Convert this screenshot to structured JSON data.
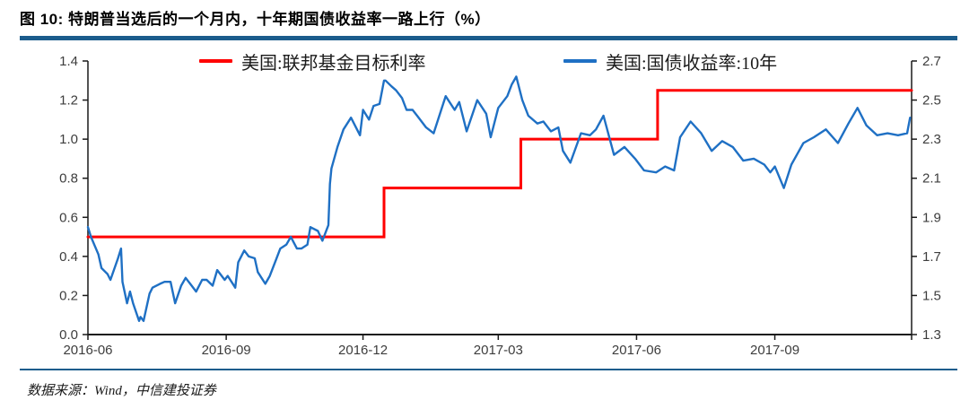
{
  "header": {
    "title": "图 10: 特朗普当选后的一个月内，十年期国债收益率一路上行（%）"
  },
  "footer": {
    "source": "数据来源：Wind，中信建投证券"
  },
  "colors": {
    "accent_bar": "#1b5c8c",
    "axis": "#1a1a1a",
    "tick_text": "#3d3d3d",
    "fedfunds_red": "#ff0000",
    "ust10y_blue": "#1f70c4"
  },
  "chart_data": {
    "type": "line",
    "title": "图 10: 特朗普当选后的一个月内，十年期国债收益率一路上行（%）",
    "grid": false,
    "legend_position": "top",
    "axes": {
      "left": {
        "min": 0.0,
        "max": 1.4,
        "ticks": [
          "0.0",
          "0.2",
          "0.4",
          "0.6",
          "0.8",
          "1.0",
          "1.2",
          "1.4"
        ]
      },
      "right": {
        "min": 1.3,
        "max": 2.7,
        "ticks": [
          "1.3",
          "1.5",
          "1.7",
          "1.9",
          "2.1",
          "2.3",
          "2.5",
          "2.7"
        ]
      },
      "x": {
        "start": "2016-06-01",
        "end": "2017-12-01",
        "ticks": [
          {
            "label": "2016-06",
            "date": "2016-06-01"
          },
          {
            "label": "2016-09",
            "date": "2016-09-01"
          },
          {
            "label": "2016-12",
            "date": "2016-12-01"
          },
          {
            "label": "2017-03",
            "date": "2017-03-01"
          },
          {
            "label": "2017-06",
            "date": "2017-06-01"
          },
          {
            "label": "2017-09",
            "date": "2017-09-01"
          },
          {
            "label": "",
            "date": "2017-12-01"
          }
        ]
      }
    },
    "series": [
      {
        "name": "美国:联邦基金目标利率",
        "axis": "left",
        "color": "#ff0000",
        "style": "step",
        "data": [
          [
            "2016-06-01",
            0.5
          ],
          [
            "2016-12-15",
            0.5
          ],
          [
            "2016-12-15",
            0.75
          ],
          [
            "2017-03-16",
            0.75
          ],
          [
            "2017-03-16",
            1.0
          ],
          [
            "2017-06-15",
            1.0
          ],
          [
            "2017-06-15",
            1.25
          ],
          [
            "2017-12-01",
            1.25
          ]
        ]
      },
      {
        "name": "美国:国债收益率:10年",
        "axis": "right",
        "color": "#1f70c4",
        "style": "line",
        "data": [
          [
            "2016-06-01",
            1.85
          ],
          [
            "2016-06-03",
            1.8
          ],
          [
            "2016-06-08",
            1.71
          ],
          [
            "2016-06-10",
            1.64
          ],
          [
            "2016-06-14",
            1.61
          ],
          [
            "2016-06-16",
            1.58
          ],
          [
            "2016-06-21",
            1.69
          ],
          [
            "2016-06-23",
            1.74
          ],
          [
            "2016-06-24",
            1.57
          ],
          [
            "2016-06-27",
            1.46
          ],
          [
            "2016-06-29",
            1.52
          ],
          [
            "2016-07-01",
            1.46
          ],
          [
            "2016-07-05",
            1.37
          ],
          [
            "2016-07-06",
            1.39
          ],
          [
            "2016-07-08",
            1.37
          ],
          [
            "2016-07-12",
            1.51
          ],
          [
            "2016-07-14",
            1.54
          ],
          [
            "2016-07-19",
            1.56
          ],
          [
            "2016-07-22",
            1.57
          ],
          [
            "2016-07-26",
            1.57
          ],
          [
            "2016-07-29",
            1.46
          ],
          [
            "2016-08-02",
            1.55
          ],
          [
            "2016-08-05",
            1.59
          ],
          [
            "2016-08-09",
            1.55
          ],
          [
            "2016-08-12",
            1.52
          ],
          [
            "2016-08-16",
            1.58
          ],
          [
            "2016-08-19",
            1.58
          ],
          [
            "2016-08-23",
            1.55
          ],
          [
            "2016-08-26",
            1.63
          ],
          [
            "2016-08-31",
            1.58
          ],
          [
            "2016-09-02",
            1.6
          ],
          [
            "2016-09-07",
            1.54
          ],
          [
            "2016-09-09",
            1.67
          ],
          [
            "2016-09-13",
            1.73
          ],
          [
            "2016-09-16",
            1.7
          ],
          [
            "2016-09-20",
            1.69
          ],
          [
            "2016-09-22",
            1.62
          ],
          [
            "2016-09-27",
            1.56
          ],
          [
            "2016-09-30",
            1.6
          ],
          [
            "2016-10-04",
            1.68
          ],
          [
            "2016-10-07",
            1.74
          ],
          [
            "2016-10-11",
            1.76
          ],
          [
            "2016-10-14",
            1.8
          ],
          [
            "2016-10-18",
            1.74
          ],
          [
            "2016-10-21",
            1.74
          ],
          [
            "2016-10-25",
            1.76
          ],
          [
            "2016-10-27",
            1.85
          ],
          [
            "2016-11-01",
            1.83
          ],
          [
            "2016-11-04",
            1.78
          ],
          [
            "2016-11-08",
            1.86
          ],
          [
            "2016-11-09",
            2.07
          ],
          [
            "2016-11-10",
            2.15
          ],
          [
            "2016-11-14",
            2.26
          ],
          [
            "2016-11-18",
            2.35
          ],
          [
            "2016-11-23",
            2.41
          ],
          [
            "2016-11-29",
            2.32
          ],
          [
            "2016-12-01",
            2.45
          ],
          [
            "2016-12-05",
            2.4
          ],
          [
            "2016-12-08",
            2.47
          ],
          [
            "2016-12-12",
            2.48
          ],
          [
            "2016-12-15",
            2.6
          ],
          [
            "2016-12-16",
            2.6
          ],
          [
            "2016-12-20",
            2.57
          ],
          [
            "2016-12-23",
            2.55
          ],
          [
            "2016-12-27",
            2.51
          ],
          [
            "2016-12-30",
            2.45
          ],
          [
            "2017-01-03",
            2.45
          ],
          [
            "2017-01-06",
            2.42
          ],
          [
            "2017-01-12",
            2.36
          ],
          [
            "2017-01-17",
            2.33
          ],
          [
            "2017-01-25",
            2.52
          ],
          [
            "2017-01-31",
            2.45
          ],
          [
            "2017-02-03",
            2.49
          ],
          [
            "2017-02-08",
            2.34
          ],
          [
            "2017-02-15",
            2.5
          ],
          [
            "2017-02-21",
            2.43
          ],
          [
            "2017-02-24",
            2.31
          ],
          [
            "2017-03-01",
            2.46
          ],
          [
            "2017-03-07",
            2.52
          ],
          [
            "2017-03-10",
            2.58
          ],
          [
            "2017-03-13",
            2.62
          ],
          [
            "2017-03-17",
            2.5
          ],
          [
            "2017-03-21",
            2.42
          ],
          [
            "2017-03-27",
            2.38
          ],
          [
            "2017-03-31",
            2.39
          ],
          [
            "2017-04-05",
            2.34
          ],
          [
            "2017-04-10",
            2.36
          ],
          [
            "2017-04-13",
            2.24
          ],
          [
            "2017-04-18",
            2.18
          ],
          [
            "2017-04-25",
            2.33
          ],
          [
            "2017-05-01",
            2.32
          ],
          [
            "2017-05-05",
            2.35
          ],
          [
            "2017-05-10",
            2.42
          ],
          [
            "2017-05-17",
            2.22
          ],
          [
            "2017-05-24",
            2.26
          ],
          [
            "2017-05-31",
            2.2
          ],
          [
            "2017-06-06",
            2.14
          ],
          [
            "2017-06-14",
            2.13
          ],
          [
            "2017-06-20",
            2.16
          ],
          [
            "2017-06-26",
            2.14
          ],
          [
            "2017-06-30",
            2.31
          ],
          [
            "2017-07-07",
            2.39
          ],
          [
            "2017-07-14",
            2.33
          ],
          [
            "2017-07-21",
            2.24
          ],
          [
            "2017-07-28",
            2.29
          ],
          [
            "2017-08-04",
            2.26
          ],
          [
            "2017-08-11",
            2.19
          ],
          [
            "2017-08-18",
            2.2
          ],
          [
            "2017-08-25",
            2.17
          ],
          [
            "2017-08-29",
            2.13
          ],
          [
            "2017-09-01",
            2.16
          ],
          [
            "2017-09-07",
            2.05
          ],
          [
            "2017-09-12",
            2.17
          ],
          [
            "2017-09-20",
            2.28
          ],
          [
            "2017-09-27",
            2.31
          ],
          [
            "2017-10-05",
            2.35
          ],
          [
            "2017-10-13",
            2.28
          ],
          [
            "2017-10-20",
            2.38
          ],
          [
            "2017-10-26",
            2.46
          ],
          [
            "2017-11-01",
            2.37
          ],
          [
            "2017-11-08",
            2.32
          ],
          [
            "2017-11-15",
            2.33
          ],
          [
            "2017-11-22",
            2.32
          ],
          [
            "2017-11-28",
            2.33
          ],
          [
            "2017-11-30",
            2.41
          ]
        ]
      }
    ]
  }
}
